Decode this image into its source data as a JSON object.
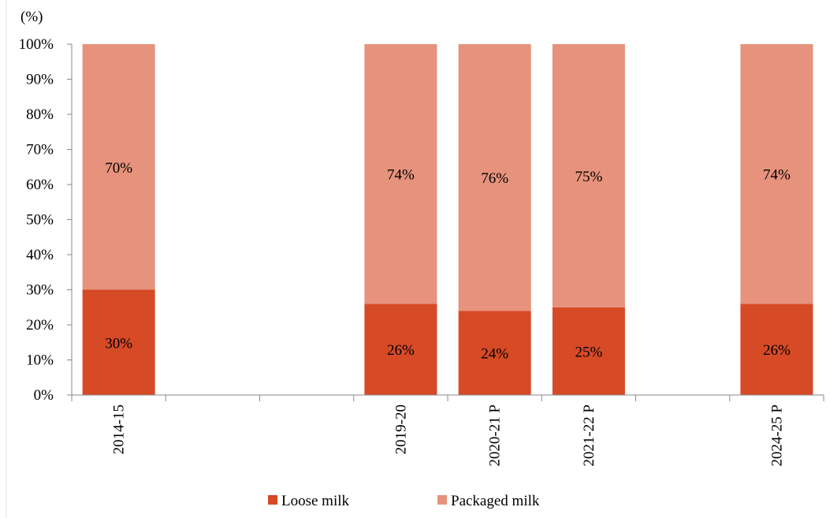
{
  "chart_data": {
    "type": "bar",
    "stacked": true,
    "unit_label": "(%)",
    "categories": [
      "2014-15",
      "",
      "",
      "2019-20",
      "2020-21 P",
      "2021-22 P",
      "",
      "2024-25 P"
    ],
    "series": [
      {
        "name": "Loose milk",
        "color": "#d64a26",
        "values": [
          30,
          null,
          null,
          26,
          24,
          25,
          null,
          26
        ],
        "labels": [
          "30%",
          "",
          "",
          "26%",
          "24%",
          "25%",
          "",
          "26%"
        ]
      },
      {
        "name": "Packaged milk",
        "color": "#e6927c",
        "values": [
          70,
          null,
          null,
          74,
          76,
          75,
          null,
          74
        ],
        "labels": [
          "70%",
          "",
          "",
          "74%",
          "76%",
          "75%",
          "",
          "74%"
        ]
      }
    ],
    "ylim": [
      0,
      100
    ],
    "yticks": [
      "0%",
      "10%",
      "20%",
      "30%",
      "40%",
      "50%",
      "60%",
      "70%",
      "80%",
      "90%",
      "100%"
    ],
    "grid": false,
    "legend_position": "bottom"
  }
}
